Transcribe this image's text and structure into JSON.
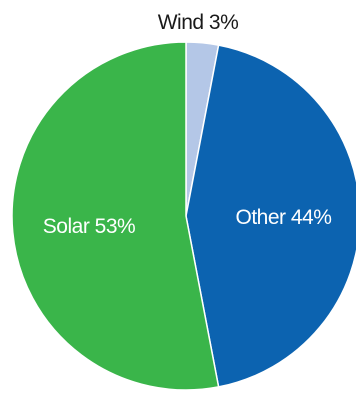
{
  "chart_data": {
    "type": "pie",
    "title": "",
    "start_angle_deg": 0,
    "direction": "clockwise",
    "slices": [
      {
        "name": "Wind",
        "label": "Wind 3%",
        "value": 3,
        "color": "#b4c7e7",
        "label_color": "#1a1a1a",
        "label_position": "outside"
      },
      {
        "name": "Other",
        "label": "Other 44%",
        "value": 44,
        "color": "#0c63b0",
        "label_color": "#ffffff",
        "label_position": "inside"
      },
      {
        "name": "Solar",
        "label": "Solar 53%",
        "value": 53,
        "color": "#3ab54a",
        "label_color": "#ffffff",
        "label_position": "inside"
      }
    ]
  }
}
